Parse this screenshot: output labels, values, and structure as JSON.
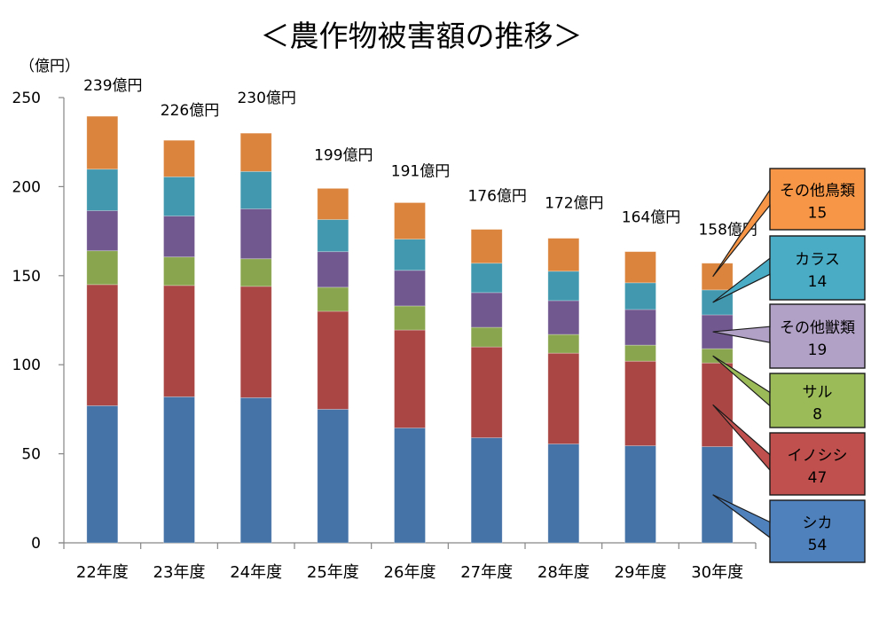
{
  "chart_data": {
    "type": "bar",
    "stacked": true,
    "title": "＜農作物被害額の推移＞",
    "ylabel": "（億円）",
    "xlabel": "",
    "ylim": [
      0,
      250
    ],
    "yticks": [
      0,
      50,
      100,
      150,
      200,
      250
    ],
    "grid": false,
    "legend": "callouts-right",
    "categories": [
      "22年度",
      "23年度",
      "24年度",
      "25年度",
      "26年度",
      "27年度",
      "28年度",
      "29年度",
      "30年度"
    ],
    "totals": [
      239,
      226,
      230,
      199,
      191,
      176,
      172,
      164,
      158
    ],
    "total_suffix": "億円",
    "series": [
      {
        "name": "シカ",
        "color": "#4572a7",
        "values": [
          77,
          82,
          81.5,
          75,
          64.5,
          59,
          55.5,
          54.5,
          54
        ]
      },
      {
        "name": "イノシシ",
        "color": "#aa4643",
        "values": [
          68,
          62.5,
          62.5,
          55,
          55,
          51,
          51,
          47.5,
          47
        ]
      },
      {
        "name": "サル",
        "color": "#89a54e",
        "values": [
          19,
          16,
          15.5,
          13.5,
          13.5,
          11,
          10.5,
          9,
          8
        ]
      },
      {
        "name": "その他獣類",
        "color": "#71588f",
        "values": [
          22.5,
          23,
          28,
          20,
          20,
          19.5,
          19,
          20,
          19
        ]
      },
      {
        "name": "カラス",
        "color": "#4198af",
        "values": [
          23.3,
          22,
          21,
          18,
          17.5,
          16.5,
          16.5,
          15,
          14
        ]
      },
      {
        "name": "その他鳥類",
        "color": "#db843d",
        "values": [
          29.7,
          20.5,
          21.5,
          17.5,
          20.5,
          19,
          18.5,
          17.5,
          15
        ]
      }
    ],
    "callouts": [
      {
        "series": "その他鳥類",
        "label": "その他鳥類",
        "value": "15",
        "fill": "#f79646"
      },
      {
        "series": "カラス",
        "label": "カラス",
        "value": "14",
        "fill": "#4bacc6"
      },
      {
        "series": "その他獣類",
        "label": "その他獣類",
        "value": "19",
        "fill": "#b2a1c7"
      },
      {
        "series": "サル",
        "label": "サル",
        "value": "8",
        "fill": "#9bbb59"
      },
      {
        "series": "イノシシ",
        "label": "イノシシ",
        "value": "47",
        "fill": "#c0504d"
      },
      {
        "series": "シカ",
        "label": "シカ",
        "value": "54",
        "fill": "#4f81bd"
      }
    ]
  }
}
